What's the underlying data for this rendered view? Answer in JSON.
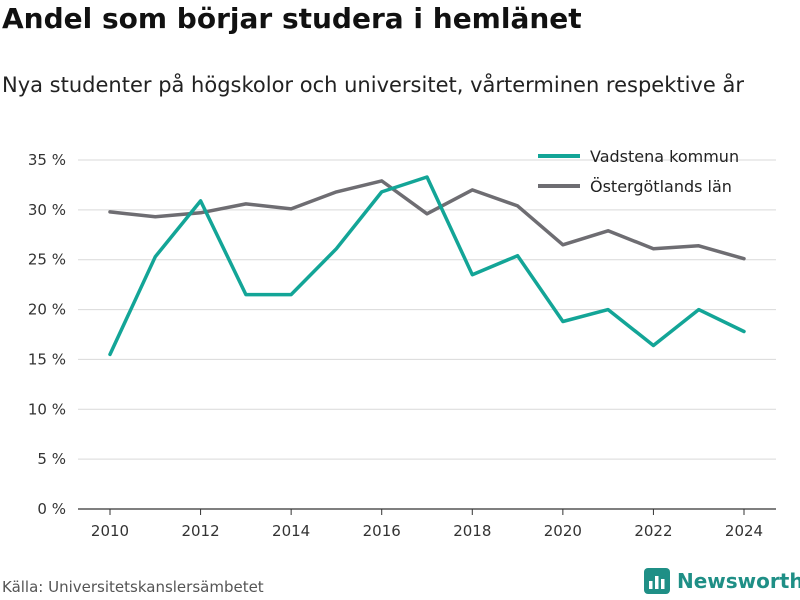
{
  "header": {
    "title": "Andel som börjar studera i hemlänet",
    "subtitle": "Nya studenter på högskolor och universitet, vårterminen respektive år"
  },
  "footer": {
    "source": "Källa: Universitetskanslersämbetet",
    "brand": "Newsworthy",
    "brand_icon": "newsworthy-logo-icon"
  },
  "chart_data": {
    "type": "line",
    "x": [
      2010,
      2011,
      2012,
      2013,
      2014,
      2015,
      2016,
      2017,
      2018,
      2019,
      2020,
      2021,
      2022,
      2023,
      2024
    ],
    "x_ticks": [
      2010,
      2012,
      2014,
      2016,
      2018,
      2020,
      2022,
      2024
    ],
    "y_ticks": [
      0,
      5,
      10,
      15,
      20,
      25,
      30,
      35
    ],
    "y_tick_suffix": " %",
    "ylim": [
      0,
      35
    ],
    "grid": "horizontal",
    "legend_position": "top-right",
    "series": [
      {
        "name": "Vadstena kommun",
        "color": "#13a597",
        "values": [
          15.5,
          25.3,
          30.9,
          21.5,
          21.5,
          26.1,
          31.8,
          33.3,
          23.5,
          25.4,
          18.8,
          20.0,
          16.4,
          20.0,
          17.8
        ]
      },
      {
        "name": "Östergötlands län",
        "color": "#6e6d72",
        "values": [
          29.8,
          29.3,
          29.7,
          30.6,
          30.1,
          31.8,
          32.9,
          29.6,
          32.0,
          30.4,
          26.5,
          27.9,
          26.1,
          26.4,
          25.1
        ]
      }
    ],
    "colors": {
      "grid": "#d9d9d9",
      "axis": "#333333"
    }
  }
}
